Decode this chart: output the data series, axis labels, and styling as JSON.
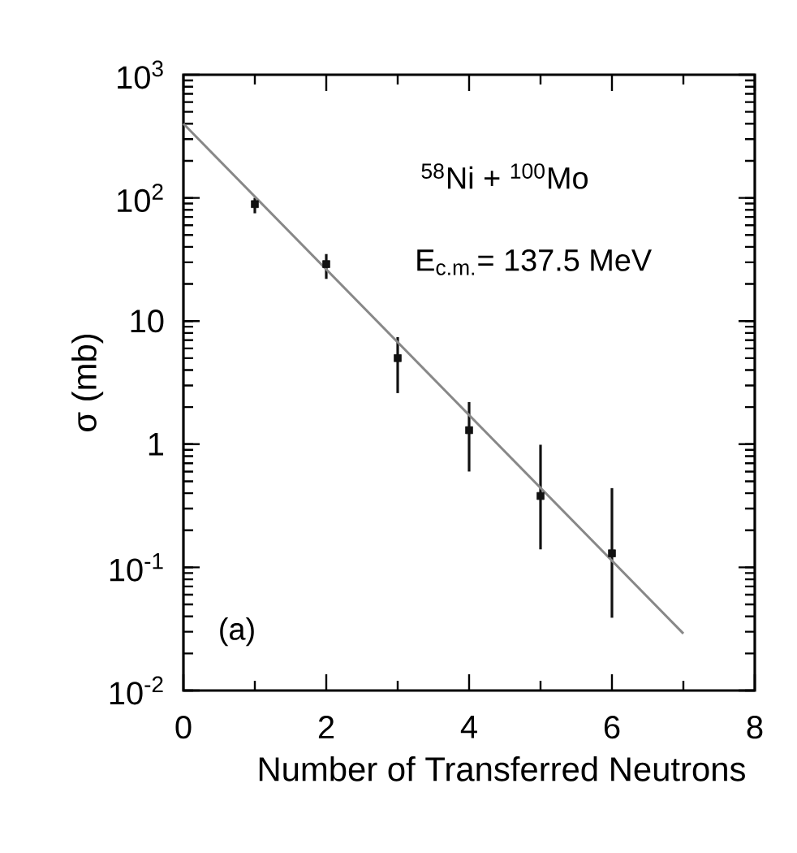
{
  "chart_data": {
    "type": "scatter",
    "xlabel": "Number of Transferred Neutrons",
    "ylabel": "σ (mb)",
    "log": "y",
    "xlim": [
      0,
      8
    ],
    "xticks": [
      0,
      2,
      4,
      6,
      8
    ],
    "ylim": [
      0.01,
      1000
    ],
    "yticks": [
      {
        "value": 0.01,
        "label": "10$^{-2}$"
      },
      {
        "value": 0.1,
        "label": "10$^{-1}$"
      },
      1,
      10,
      {
        "value": 100,
        "label": "10$^{2}$"
      },
      {
        "value": 1000,
        "label": "10$^{3}$"
      }
    ],
    "annotations": [
      "$^{58}$Ni + $^{100}$Mo",
      "E$_{c.m.}$= 137.5 MeV",
      "(a)"
    ],
    "series": [
      {
        "marker": "square",
        "color": "#111111",
        "x": [
          1,
          2,
          3,
          4,
          5,
          6
        ],
        "values": [
          89,
          29,
          5,
          1.3,
          0.38,
          0.13
        ],
        "errors": [
          [
            75,
            100
          ],
          [
            22,
            35
          ],
          [
            2.6,
            7.4
          ],
          [
            0.6,
            2.2
          ],
          [
            0.14,
            0.99
          ],
          [
            0.039,
            0.44
          ]
        ]
      },
      {
        "type": "line",
        "color": "#888888",
        "x": [
          0,
          7
        ],
        "values": [
          400,
          0.029
        ]
      }
    ]
  }
}
